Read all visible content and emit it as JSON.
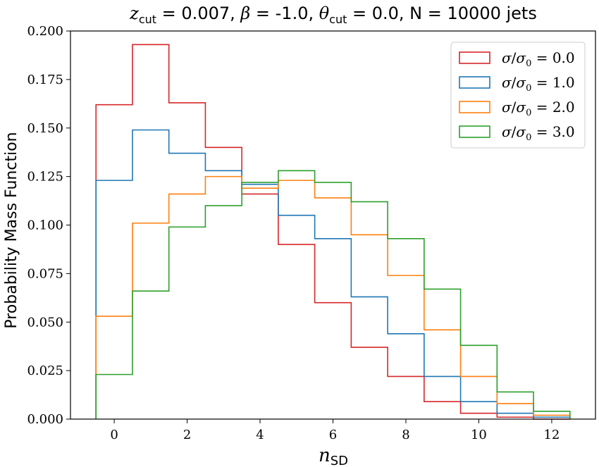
{
  "chart_data": {
    "type": "step",
    "title": "z_cut = 0.007, β = -1.0, θ_cut = 0.0, N = 10000 jets",
    "title_parts": {
      "z": "z",
      "z_sub": "cut",
      "z_val": " = 0.007, ",
      "beta": "β",
      "beta_val": " = -1.0, ",
      "theta": "θ",
      "theta_sub": "cut",
      "theta_val": " = 0.0, N = 10000 jets"
    },
    "xlabel": "n",
    "xlabel_sub": "SD",
    "ylabel": "Probability Mass Function",
    "xlim": [
      -1.2,
      13.2
    ],
    "ylim": [
      0.0,
      0.2
    ],
    "xticks": [
      0,
      2,
      4,
      6,
      8,
      10,
      12
    ],
    "yticks": [
      0.0,
      0.025,
      0.05,
      0.075,
      0.1,
      0.125,
      0.15,
      0.175,
      0.2
    ],
    "yticklabels": [
      "0.000",
      "0.025",
      "0.050",
      "0.075",
      "0.100",
      "0.125",
      "0.150",
      "0.175",
      "0.200"
    ],
    "grid": false,
    "legend_position": "top-right",
    "bin_edges": [
      -0.5,
      0.5,
      1.5,
      2.5,
      3.5,
      4.5,
      5.5,
      6.5,
      7.5,
      8.5,
      9.5,
      10.5,
      11.5,
      12.5
    ],
    "series": [
      {
        "name": "σ/σ0 = 0.0",
        "label_value": "0.0",
        "color": "#d62728",
        "values": [
          0.162,
          0.193,
          0.163,
          0.14,
          0.116,
          0.09,
          0.06,
          0.037,
          0.022,
          0.009,
          0.003,
          0.001,
          0.0
        ]
      },
      {
        "name": "σ/σ0 = 1.0",
        "label_value": "1.0",
        "color": "#1f77b4",
        "values": [
          0.123,
          0.149,
          0.137,
          0.128,
          0.121,
          0.105,
          0.093,
          0.063,
          0.044,
          0.022,
          0.009,
          0.003,
          0.001
        ]
      },
      {
        "name": "σ/σ0 = 2.0",
        "label_value": "2.0",
        "color": "#ff7f0e",
        "values": [
          0.053,
          0.101,
          0.116,
          0.125,
          0.119,
          0.123,
          0.114,
          0.095,
          0.074,
          0.046,
          0.022,
          0.008,
          0.002
        ]
      },
      {
        "name": "σ/σ0 = 3.0",
        "label_value": "3.0",
        "color": "#2ca02c",
        "values": [
          0.023,
          0.066,
          0.099,
          0.11,
          0.122,
          0.128,
          0.122,
          0.112,
          0.093,
          0.067,
          0.038,
          0.014,
          0.004
        ]
      }
    ]
  }
}
